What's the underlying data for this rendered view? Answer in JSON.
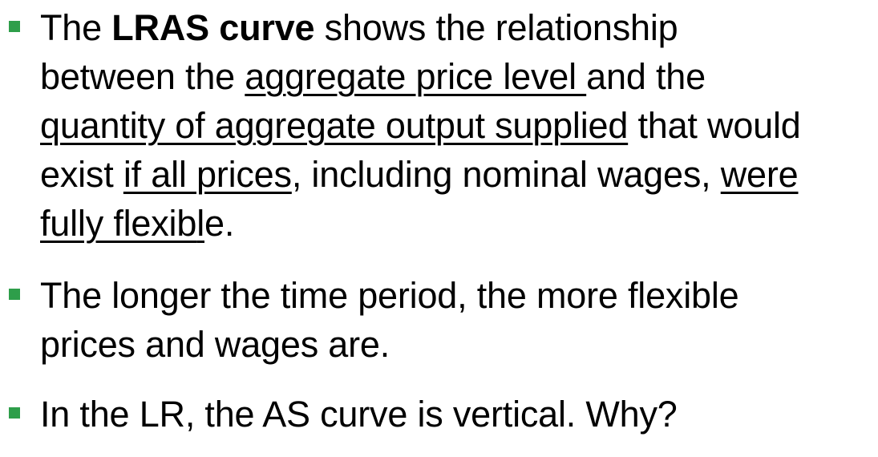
{
  "bullets": [
    {
      "lines": [
        [
          "The ",
          "LRAS curve",
          " shows the relationship"
        ],
        [
          "between the ",
          "aggregate price level ",
          "and the"
        ],
        [
          "quantity of aggregate output supplied",
          " that would"
        ],
        [
          "exist ",
          "if all prices",
          ", including nominal wages, ",
          "were"
        ],
        [
          "fully flexib",
          "l",
          "e",
          "."
        ]
      ]
    },
    {
      "lines": [
        [
          "The longer the time period, the more flexible"
        ],
        [
          "prices and wages are."
        ]
      ]
    },
    {
      "lines": [
        [
          "In the LR, the AS curve is vertical. Why?"
        ]
      ]
    }
  ],
  "colors": {
    "bullet_marker": "#2e9e4a",
    "text": "#000000",
    "background": "#ffffff"
  }
}
